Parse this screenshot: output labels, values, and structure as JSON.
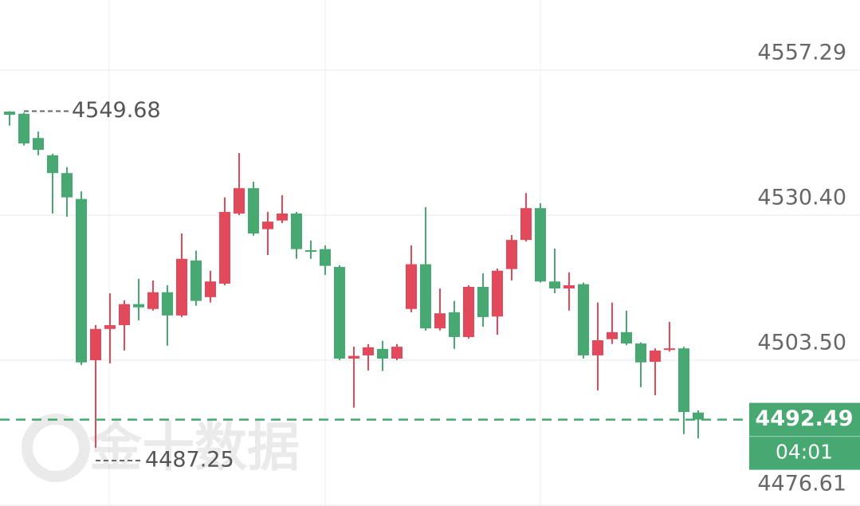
{
  "chart_data": {
    "type": "candlestick",
    "up_color": "#e2495a",
    "down_color": "#47a872",
    "open": [
      4549.6,
      4549.2,
      4544.7,
      4541.5,
      4538.2,
      4533.4,
      4503.5,
      4509.3,
      4510.0,
      4513.9,
      4513.0,
      4516.1,
      4511.8,
      4522.0,
      4515.2,
      4517.7,
      4530.7,
      4535.4,
      4527.8,
      4529.4,
      4530.7,
      4523.9,
      4524.1,
      4520.8,
      4503.8,
      4504.4,
      4505.6,
      4503.8,
      4513.0,
      4521.3,
      4509.4,
      4512.4,
      4507.8,
      4517.1,
      4511.6,
      4520.4,
      4525.8,
      4531.7,
      4518.1,
      4516.8,
      4517.6,
      4504.4,
      4507.4,
      4508.7,
      4506.6,
      4503.2,
      4505.4,
      4505.7,
      4493.8
    ],
    "high": [
      4549.68,
      4549.4,
      4545.9,
      4541.8,
      4539.3,
      4534.8,
      4510.0,
      4515.9,
      4514.6,
      4518.6,
      4518.3,
      4517.4,
      4527.0,
      4523.8,
      4520.1,
      4533.7,
      4541.9,
      4536.6,
      4531.0,
      4534.1,
      4531.0,
      4525.7,
      4524.8,
      4521.1,
      4506.0,
      4506.5,
      4507.1,
      4506.5,
      4524.8,
      4531.9,
      4516.8,
      4514.5,
      4517.4,
      4519.6,
      4520.5,
      4526.7,
      4534.5,
      4532.6,
      4524.2,
      4519.8,
      4517.9,
      4514.2,
      4514.2,
      4512.7,
      4506.8,
      4505.7,
      4510.6,
      4506.0,
      4494.2
    ],
    "low": [
      4547.0,
      4543.3,
      4541.5,
      4530.7,
      4530.1,
      4502.6,
      4487.25,
      4502.9,
      4505.3,
      4510.9,
      4512.7,
      4506.2,
      4511.5,
      4513.6,
      4514.2,
      4517.4,
      4530.4,
      4526.6,
      4523.0,
      4528.9,
      4522.3,
      4522.3,
      4519.3,
      4503.5,
      4494.7,
      4501.6,
      4501.5,
      4503.5,
      4512.4,
      4509.0,
      4509.0,
      4505.6,
      4507.5,
      4509.7,
      4508.2,
      4518.3,
      4525.5,
      4517.9,
      4515.9,
      4512.7,
      4503.8,
      4497.9,
      4506.5,
      4506.3,
      4498.5,
      4497.0,
      4505.1,
      4489.8,
      4489.0
    ],
    "close": [
      4549.0,
      4543.7,
      4542.5,
      4538.2,
      4533.7,
      4503.1,
      4509.3,
      4510.0,
      4513.9,
      4513.3,
      4516.1,
      4511.8,
      4522.3,
      4514.5,
      4518.1,
      4531.0,
      4535.4,
      4527.0,
      4529.2,
      4530.7,
      4524.1,
      4523.6,
      4521.0,
      4503.8,
      4504.3,
      4505.9,
      4503.8,
      4506.0,
      4521.3,
      4509.4,
      4512.2,
      4507.8,
      4517.1,
      4511.5,
      4520.1,
      4525.8,
      4531.7,
      4518.1,
      4516.8,
      4517.4,
      4504.4,
      4507.2,
      4508.7,
      4506.6,
      4503.1,
      4505.3,
      4505.7,
      4493.9,
      4492.49
    ],
    "ylim": [
      4476.47,
      4570.29
    ],
    "yticks": [
      4557.29,
      {
        "value": 4530.4,
        "label": "4530.40"
      },
      {
        "value": 4503.5,
        "label": "4503.50"
      },
      4476.61
    ],
    "grid": true,
    "high_marker": 4549.68,
    "low_marker": 4487.25,
    "last_price": 4492.49,
    "countdown": "04:01",
    "watermark": "金十数据"
  }
}
